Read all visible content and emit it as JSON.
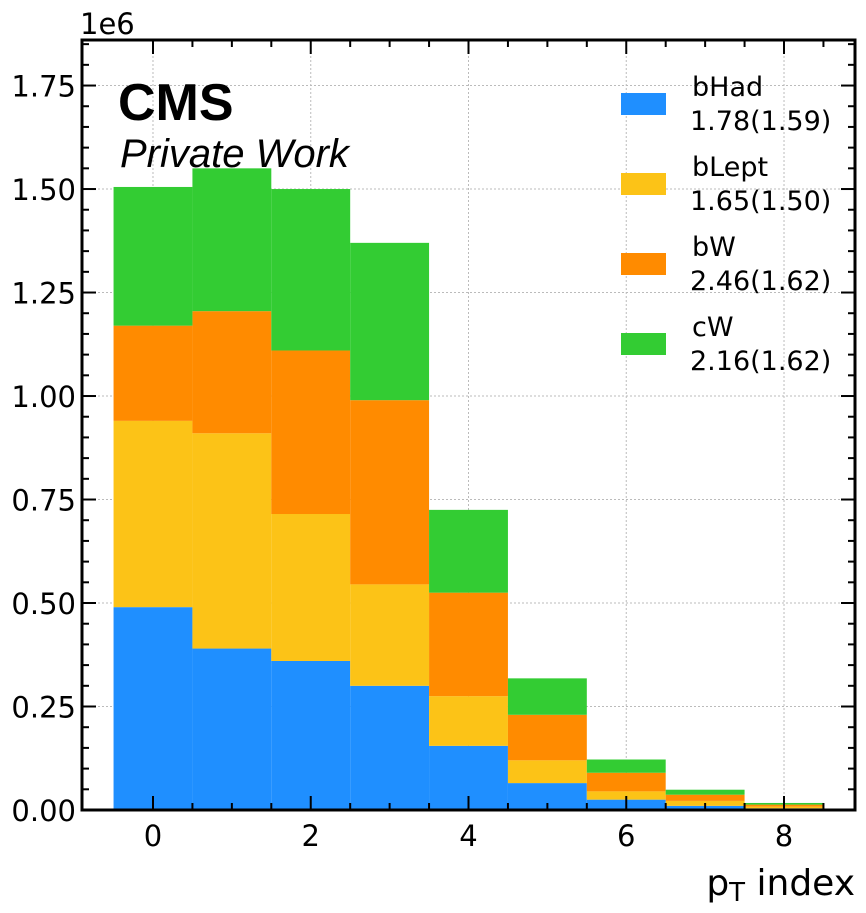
{
  "chart_data": {
    "type": "bar",
    "stacked": true,
    "histogram": true,
    "bins": [
      0,
      1,
      2,
      3,
      4,
      5,
      6,
      7,
      8
    ],
    "series": [
      {
        "name": "bHad",
        "stat": "1.78(1.59)",
        "color": "#1f8fff",
        "values": [
          490000,
          390000,
          360000,
          300000,
          155000,
          65000,
          25000,
          10000,
          4000
        ]
      },
      {
        "name": "bLept",
        "stat": "1.65(1.50)",
        "color": "#fcc317",
        "values": [
          450000,
          520000,
          355000,
          245000,
          120000,
          55000,
          20000,
          12000,
          4000
        ]
      },
      {
        "name": "bW",
        "stat": "2.46(1.62)",
        "color": "#ff8b00",
        "values": [
          230000,
          295000,
          395000,
          445000,
          250000,
          110000,
          45000,
          15000,
          5000
        ]
      },
      {
        "name": "cW",
        "stat": "2.16(1.62)",
        "color": "#33cc33",
        "values": [
          335000,
          345000,
          390000,
          380000,
          200000,
          88000,
          32000,
          12000,
          4000
        ]
      }
    ],
    "xlim": [
      -0.9,
      8.9
    ],
    "ylim": [
      0,
      1860000
    ],
    "xticks": [
      0,
      2,
      4,
      6,
      8
    ],
    "yticks": [
      0,
      250000,
      500000,
      750000,
      1000000,
      1250000,
      1500000,
      1750000
    ],
    "ytick_labels": [
      "0.00",
      "0.25",
      "0.50",
      "0.75",
      "1.00",
      "1.25",
      "1.50",
      "1.75"
    ],
    "xtick_labels": [
      "0",
      "2",
      "4",
      "6",
      "8"
    ],
    "y_offset_label": "1e6",
    "xlabel_main": "p",
    "xlabel_sub": "T",
    "xlabel_rest": " index",
    "ylabel": "",
    "grid": true,
    "legend_position": "top-right"
  },
  "experiment_label": "CMS",
  "experiment_sublabel": "Private Work"
}
